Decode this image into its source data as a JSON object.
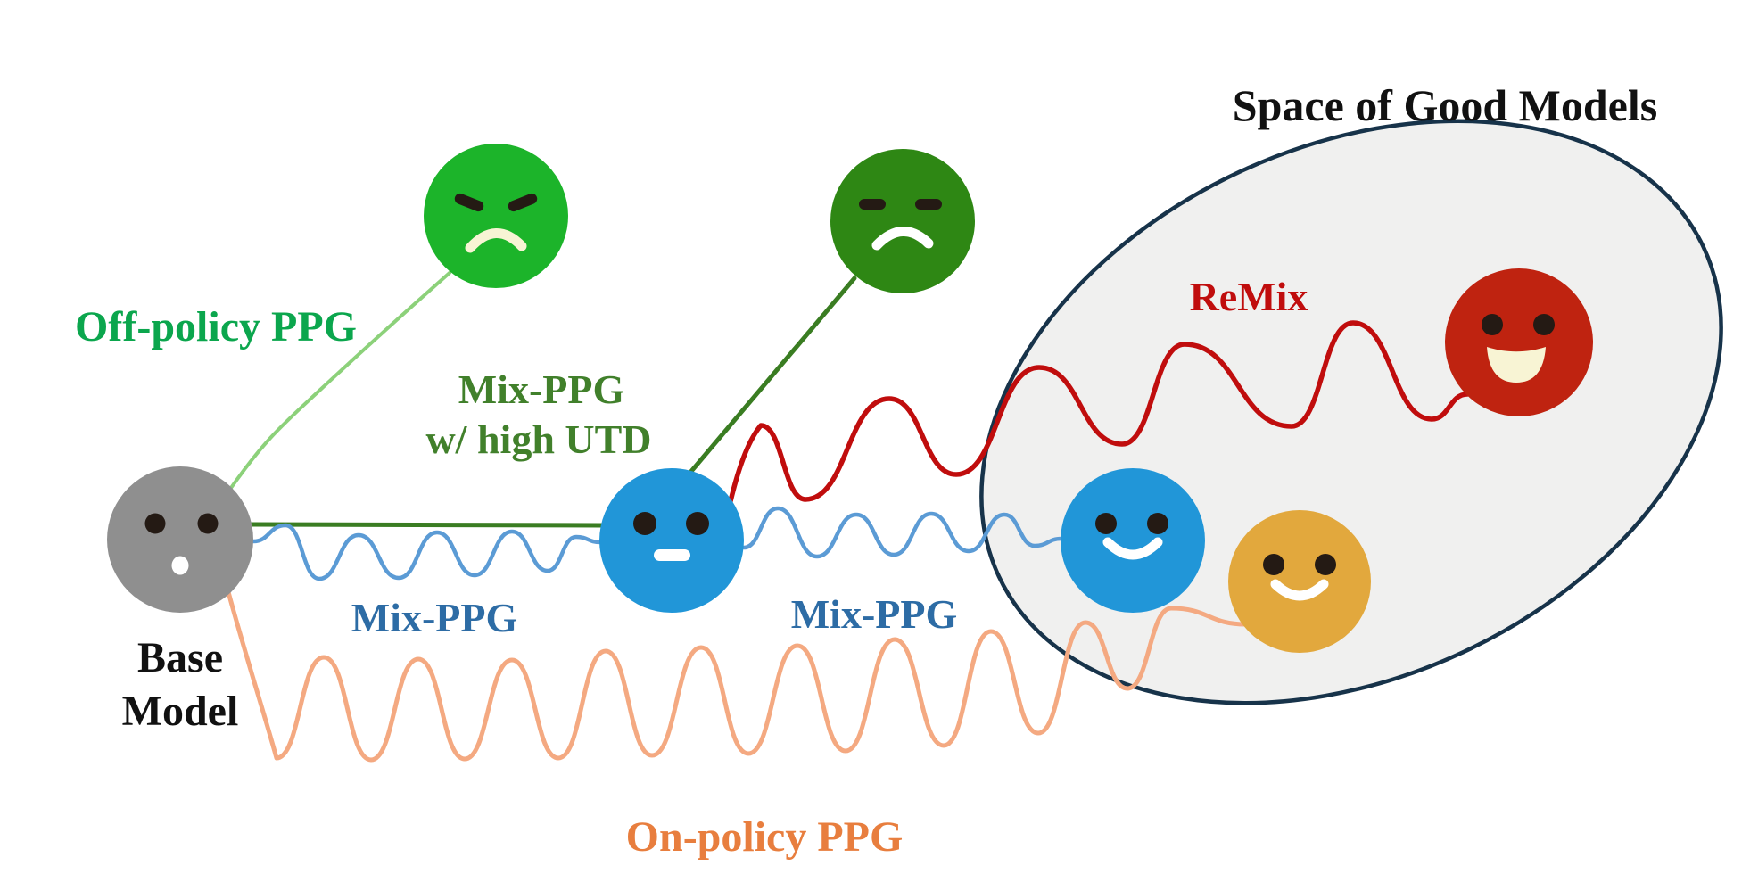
{
  "title": "Space of Good Models",
  "labels": {
    "off_policy": "Off-policy PPG",
    "mix_ppg_utd_line1": "Mix-PPG",
    "mix_ppg_utd_line2": "w/ high UTD",
    "mix_ppg_1": "Mix-PPG",
    "mix_ppg_2": "Mix-PPG",
    "remix": "ReMix",
    "on_policy": "On-policy PPG",
    "base_model_line1": "Base",
    "base_model_line2": "Model"
  },
  "faces": [
    {
      "name": "base-model-face",
      "mood": "neutral-surprised",
      "color": "#8f8f8f"
    },
    {
      "name": "off-policy-ppg-face",
      "mood": "angry",
      "color": "#1cb42a"
    },
    {
      "name": "mix-ppg-high-utd-face",
      "mood": "displeased",
      "color": "#2e8714"
    },
    {
      "name": "mix-ppg-intermediate-face",
      "mood": "neutral",
      "color": "#2196d8"
    },
    {
      "name": "mix-ppg-good-face",
      "mood": "happy",
      "color": "#2196d8"
    },
    {
      "name": "on-policy-ppg-face",
      "mood": "happy",
      "color": "#e2a83d"
    },
    {
      "name": "remix-face",
      "mood": "very-happy",
      "color": "#bf2310"
    }
  ],
  "colors": {
    "title_black": "#111111",
    "base_text": "#111111",
    "off_policy_green": "#0ba64d",
    "light_green_line": "#8cd17a",
    "dark_green_line": "#3a7d22",
    "utd_text_green": "#41802b",
    "mix_blue_text": "#2d6ca5",
    "blue_wave": "#5b9bd5",
    "remix_red": "#c00d0d",
    "red_wave": "#c00d0d",
    "on_policy_text": "#e87e3e",
    "orange_wave": "#f4a981",
    "ellipse_stroke": "#17334a",
    "ellipse_fill": "#f0f0ef",
    "eye_dark": "#241a14",
    "mouth_white": "#ffffff",
    "mouth_cream": "#f8f4d4"
  }
}
